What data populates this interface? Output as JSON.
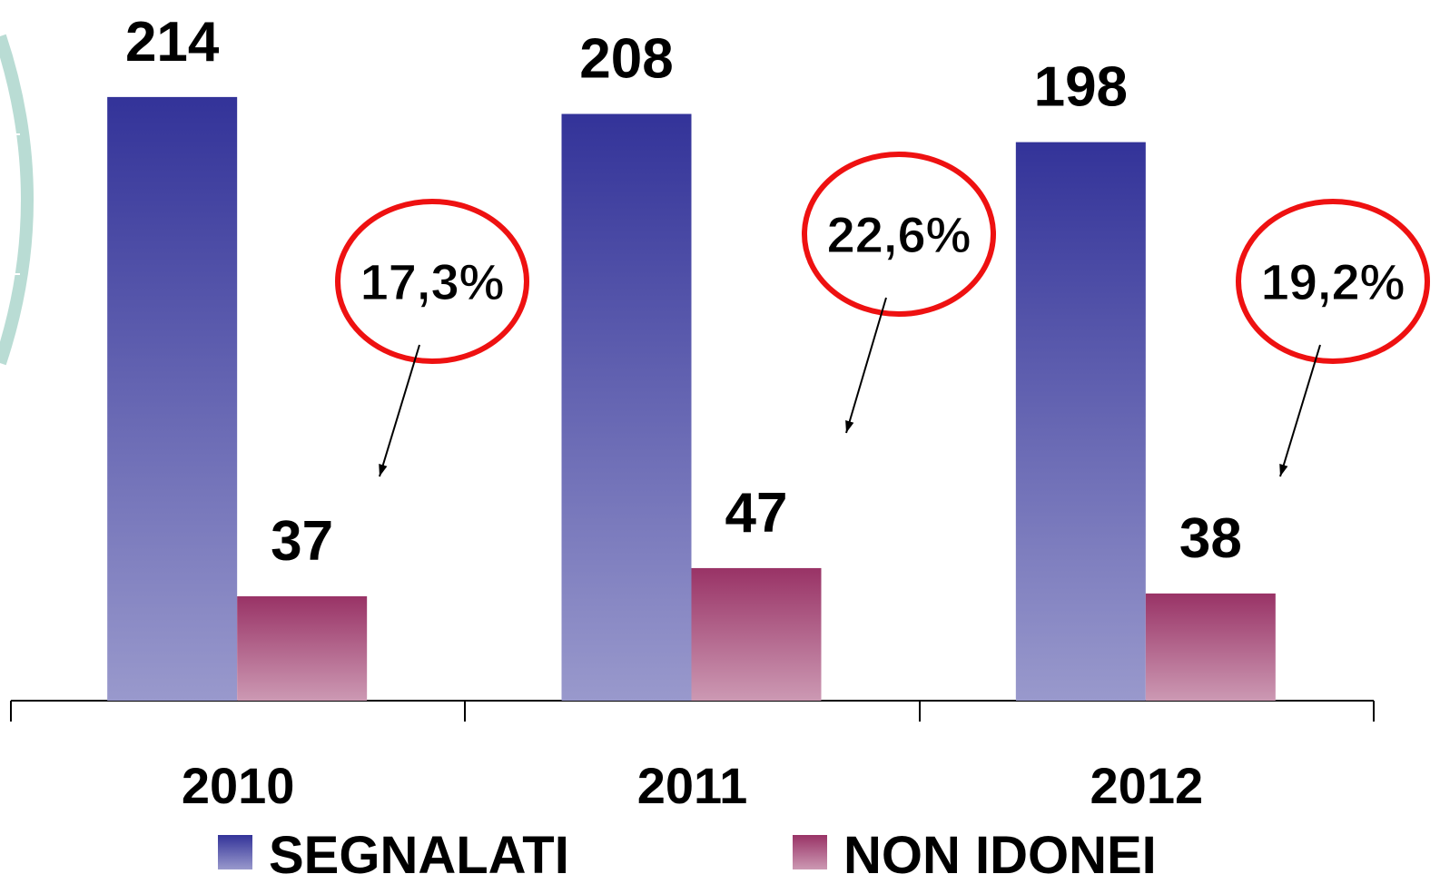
{
  "chart_data": {
    "type": "bar",
    "categories": [
      "2010",
      "2011",
      "2012"
    ],
    "series": [
      {
        "name": "SEGNALATI",
        "color": "#333399",
        "values": [
          214,
          208,
          198
        ]
      },
      {
        "name": "NON IDONEI",
        "color": "#993366",
        "values": [
          37,
          47,
          38
        ]
      }
    ],
    "annotations": [
      "17,3%",
      "22,6%",
      "19,2%"
    ],
    "ylim": [
      0,
      250
    ]
  }
}
